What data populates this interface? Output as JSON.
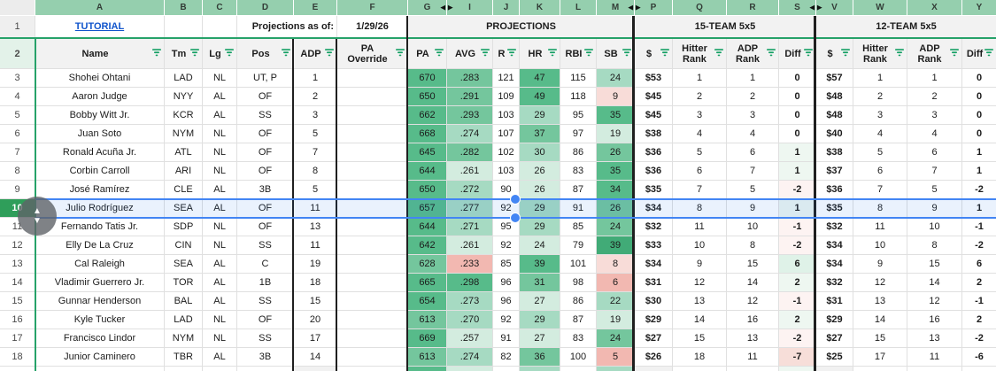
{
  "colors": {
    "strip_green": "#95cfae",
    "table_border_green": "#26a269",
    "row_header_tint": "#e3f2e9",
    "header_gray": "#f2f2f2",
    "cell_gray": "#f1f1f1",
    "gridline": "#e0e0e0",
    "thick_border": "#1f1f1f",
    "link_blue": "#1155cc",
    "selection_blue": "#4285f4",
    "selected_row_header_green": "#2f9e5a",
    "filter_icon_green": "#14a064",
    "tones": {
      "g1": "#57bb8a",
      "g1d": "#41ab77",
      "g2": "#74c69d",
      "g3": "#a6dac2",
      "g4": "#d3ecdf",
      "p1": "#f2b8b1",
      "p2": "#f8dcd8",
      "fg1": "#eef7f1",
      "fg2": "#dff2e8",
      "fp1": "#fdf3f2",
      "fp2": "#f7ded9"
    }
  },
  "column_strip": {
    "collapse_left_glyph": "◀",
    "collapse_right_glyph": "▶",
    "letters": [
      {
        "l": "A"
      },
      {
        "l": "B"
      },
      {
        "l": "C"
      },
      {
        "l": "D"
      },
      {
        "l": "E"
      },
      {
        "l": "F"
      },
      {
        "l": "G",
        "ar": "r"
      },
      {
        "l": "I",
        "ar": "l"
      },
      {
        "l": "J"
      },
      {
        "l": "K"
      },
      {
        "l": "L"
      },
      {
        "l": "M",
        "ar": "r"
      },
      {
        "l": "P",
        "ar": "l"
      },
      {
        "l": "Q"
      },
      {
        "l": "R"
      },
      {
        "l": "S",
        "ar": "r"
      },
      {
        "l": "V",
        "ar": "l"
      },
      {
        "l": "W"
      },
      {
        "l": "X"
      },
      {
        "l": "Y"
      }
    ]
  },
  "row1": {
    "num": "1",
    "tutorial": "TUTORIAL",
    "projections_as_of": "Projections as of:",
    "date": "1/29/26",
    "projections": "PROJECTIONS",
    "team15": "15-TEAM 5x5",
    "team12": "12-TEAM 5x5"
  },
  "header_row_num": "2",
  "headers": [
    "Name",
    "Tm",
    "Lg",
    "Pos",
    "ADP",
    "PA Override",
    "PA",
    "AVG",
    "R",
    "HR",
    "RBI",
    "SB",
    "$",
    "Hitter Rank",
    "ADP Rank",
    "Diff",
    "$",
    "Hitter Rank",
    "ADP Rank",
    "Diff"
  ],
  "rows": [
    {
      "num": "3",
      "name": "Shohei Ohtani",
      "tm": "LAD",
      "lg": "NL",
      "pos": "UT, P",
      "adp": "1",
      "ovr": "",
      "pa": [
        "670",
        "g1"
      ],
      "avg": [
        ".283",
        "g2"
      ],
      "r": "121",
      "hr": [
        "47",
        "g1"
      ],
      "rbi": "115",
      "sb": [
        "24",
        "g3"
      ],
      "d15": [
        "$53",
        "1",
        "1",
        "0",
        ""
      ],
      "d12": [
        "$57",
        "1",
        "1",
        "0"
      ]
    },
    {
      "num": "4",
      "name": "Aaron Judge",
      "tm": "NYY",
      "lg": "AL",
      "pos": "OF",
      "adp": "2",
      "ovr": "",
      "pa": [
        "650",
        "g1"
      ],
      "avg": [
        ".291",
        "g2"
      ],
      "r": "109",
      "hr": [
        "49",
        "g1"
      ],
      "rbi": "118",
      "sb": [
        "9",
        "p2"
      ],
      "d15": [
        "$45",
        "2",
        "2",
        "0",
        ""
      ],
      "d12": [
        "$48",
        "2",
        "2",
        "0"
      ]
    },
    {
      "num": "5",
      "name": "Bobby Witt Jr.",
      "tm": "KCR",
      "lg": "AL",
      "pos": "SS",
      "adp": "3",
      "ovr": "",
      "pa": [
        "662",
        "g1"
      ],
      "avg": [
        ".293",
        "g2"
      ],
      "r": "103",
      "hr": [
        "29",
        "g3"
      ],
      "rbi": "95",
      "sb": [
        "35",
        "g1"
      ],
      "d15": [
        "$45",
        "3",
        "3",
        "0",
        ""
      ],
      "d12": [
        "$48",
        "3",
        "3",
        "0"
      ]
    },
    {
      "num": "6",
      "name": "Juan Soto",
      "tm": "NYM",
      "lg": "NL",
      "pos": "OF",
      "adp": "5",
      "ovr": "",
      "pa": [
        "668",
        "g1"
      ],
      "avg": [
        ".274",
        "g3"
      ],
      "r": "107",
      "hr": [
        "37",
        "g2"
      ],
      "rbi": "97",
      "sb": [
        "19",
        "g4"
      ],
      "d15": [
        "$38",
        "4",
        "4",
        "0",
        ""
      ],
      "d12": [
        "$40",
        "4",
        "4",
        "0"
      ]
    },
    {
      "num": "7",
      "name": "Ronald Acuña Jr.",
      "tm": "ATL",
      "lg": "NL",
      "pos": "OF",
      "adp": "7",
      "ovr": "",
      "pa": [
        "645",
        "g1"
      ],
      "avg": [
        ".282",
        "g2"
      ],
      "r": "102",
      "hr": [
        "30",
        "g3"
      ],
      "rbi": "86",
      "sb": [
        "26",
        "g2"
      ],
      "d15": [
        "$36",
        "5",
        "6",
        "1",
        "fg1"
      ],
      "d12": [
        "$38",
        "5",
        "6",
        "1"
      ]
    },
    {
      "num": "8",
      "name": "Corbin Carroll",
      "tm": "ARI",
      "lg": "NL",
      "pos": "OF",
      "adp": "8",
      "ovr": "",
      "pa": [
        "644",
        "g1"
      ],
      "avg": [
        ".261",
        "g4"
      ],
      "r": "103",
      "hr": [
        "26",
        "g4"
      ],
      "rbi": "83",
      "sb": [
        "35",
        "g1"
      ],
      "d15": [
        "$36",
        "6",
        "7",
        "1",
        "fg1"
      ],
      "d12": [
        "$37",
        "6",
        "7",
        "1"
      ]
    },
    {
      "num": "9",
      "name": "José Ramírez",
      "tm": "CLE",
      "lg": "AL",
      "pos": "3B",
      "adp": "5",
      "ovr": "",
      "pa": [
        "650",
        "g1"
      ],
      "avg": [
        ".272",
        "g3"
      ],
      "r": "90",
      "hr": [
        "26",
        "g4"
      ],
      "rbi": "87",
      "sb": [
        "34",
        "g1"
      ],
      "d15": [
        "$35",
        "7",
        "5",
        "-2",
        "fp1"
      ],
      "d12": [
        "$36",
        "7",
        "5",
        "-2"
      ]
    },
    {
      "num": "10",
      "selected": true,
      "name": "Julio Rodríguez",
      "tm": "SEA",
      "lg": "AL",
      "pos": "OF",
      "adp": "11",
      "ovr": "",
      "pa": [
        "657",
        "g1"
      ],
      "avg": [
        ".277",
        "g3"
      ],
      "r": "92",
      "hr": [
        "29",
        "g3"
      ],
      "rbi": "91",
      "sb": [
        "26",
        "g2"
      ],
      "d15": [
        "$34",
        "8",
        "9",
        "1",
        "fg1"
      ],
      "d12": [
        "$35",
        "8",
        "9",
        "1"
      ]
    },
    {
      "num": "11",
      "name": "Fernando Tatis Jr.",
      "tm": "SDP",
      "lg": "NL",
      "pos": "OF",
      "adp": "13",
      "ovr": "",
      "pa": [
        "644",
        "g1"
      ],
      "avg": [
        ".271",
        "g3"
      ],
      "r": "95",
      "hr": [
        "29",
        "g3"
      ],
      "rbi": "85",
      "sb": [
        "24",
        "g2"
      ],
      "d15": [
        "$32",
        "11",
        "10",
        "-1",
        "fp1"
      ],
      "d12": [
        "$32",
        "11",
        "10",
        "-1"
      ]
    },
    {
      "num": "12",
      "name": "Elly De La Cruz",
      "tm": "CIN",
      "lg": "NL",
      "pos": "SS",
      "adp": "11",
      "ovr": "",
      "pa": [
        "642",
        "g1"
      ],
      "avg": [
        ".261",
        "g4"
      ],
      "r": "92",
      "hr": [
        "24",
        "g4"
      ],
      "rbi": "79",
      "sb": [
        "39",
        "g1d"
      ],
      "d15": [
        "$33",
        "10",
        "8",
        "-2",
        "fp1"
      ],
      "d12": [
        "$34",
        "10",
        "8",
        "-2"
      ]
    },
    {
      "num": "13",
      "name": "Cal Raleigh",
      "tm": "SEA",
      "lg": "AL",
      "pos": "C",
      "adp": "19",
      "ovr": "",
      "pa": [
        "628",
        "g2"
      ],
      "avg": [
        ".233",
        "p1"
      ],
      "r": "85",
      "hr": [
        "39",
        "g1"
      ],
      "rbi": "101",
      "sb": [
        "8",
        "p2"
      ],
      "d15": [
        "$34",
        "9",
        "15",
        "6",
        "fg2"
      ],
      "d12": [
        "$34",
        "9",
        "15",
        "6"
      ]
    },
    {
      "num": "14",
      "name": "Vladimir Guerrero Jr.",
      "tm": "TOR",
      "lg": "AL",
      "pos": "1B",
      "adp": "18",
      "ovr": "",
      "pa": [
        "665",
        "g1"
      ],
      "avg": [
        ".298",
        "g1"
      ],
      "r": "96",
      "hr": [
        "31",
        "g2"
      ],
      "rbi": "98",
      "sb": [
        "6",
        "p1"
      ],
      "d15": [
        "$31",
        "12",
        "14",
        "2",
        "fg1"
      ],
      "d12": [
        "$32",
        "12",
        "14",
        "2"
      ]
    },
    {
      "num": "15",
      "name": "Gunnar Henderson",
      "tm": "BAL",
      "lg": "AL",
      "pos": "SS",
      "adp": "15",
      "ovr": "",
      "pa": [
        "654",
        "g1"
      ],
      "avg": [
        ".273",
        "g3"
      ],
      "r": "96",
      "hr": [
        "27",
        "g4"
      ],
      "rbi": "86",
      "sb": [
        "22",
        "g3"
      ],
      "d15": [
        "$30",
        "13",
        "12",
        "-1",
        "fp1"
      ],
      "d12": [
        "$31",
        "13",
        "12",
        "-1"
      ]
    },
    {
      "num": "16",
      "name": "Kyle Tucker",
      "tm": "LAD",
      "lg": "NL",
      "pos": "OF",
      "adp": "20",
      "ovr": "",
      "pa": [
        "613",
        "g2"
      ],
      "avg": [
        ".270",
        "g3"
      ],
      "r": "92",
      "hr": [
        "29",
        "g3"
      ],
      "rbi": "87",
      "sb": [
        "19",
        "g4"
      ],
      "d15": [
        "$29",
        "14",
        "16",
        "2",
        "fg1"
      ],
      "d12": [
        "$29",
        "14",
        "16",
        "2"
      ]
    },
    {
      "num": "17",
      "name": "Francisco Lindor",
      "tm": "NYM",
      "lg": "NL",
      "pos": "SS",
      "adp": "17",
      "ovr": "",
      "pa": [
        "669",
        "g1"
      ],
      "avg": [
        ".257",
        "g4"
      ],
      "r": "91",
      "hr": [
        "27",
        "g4"
      ],
      "rbi": "83",
      "sb": [
        "24",
        "g2"
      ],
      "d15": [
        "$27",
        "15",
        "13",
        "-2",
        "fp1"
      ],
      "d12": [
        "$27",
        "15",
        "13",
        "-2"
      ]
    },
    {
      "num": "18",
      "name": "Junior Caminero",
      "tm": "TBR",
      "lg": "AL",
      "pos": "3B",
      "adp": "14",
      "ovr": "",
      "pa": [
        "613",
        "g2"
      ],
      "avg": [
        ".274",
        "g3"
      ],
      "r": "82",
      "hr": [
        "36",
        "g2"
      ],
      "rbi": "100",
      "sb": [
        "5",
        "p1"
      ],
      "d15": [
        "$26",
        "18",
        "11",
        "-7",
        "fp2"
      ],
      "d12": [
        "$25",
        "17",
        "11",
        "-6"
      ]
    }
  ],
  "partial_row": {
    "tones": {
      "adp": "cellgray",
      "pa": "g1",
      "avg": "g4",
      "hr": "g3",
      "sb": "g3",
      "usd15": "cellgray",
      "diff15": "fg1",
      "usd12": "cellgray"
    }
  },
  "selection": {
    "row_num": "10",
    "handle_up": "▲",
    "handle_down": "▼"
  }
}
